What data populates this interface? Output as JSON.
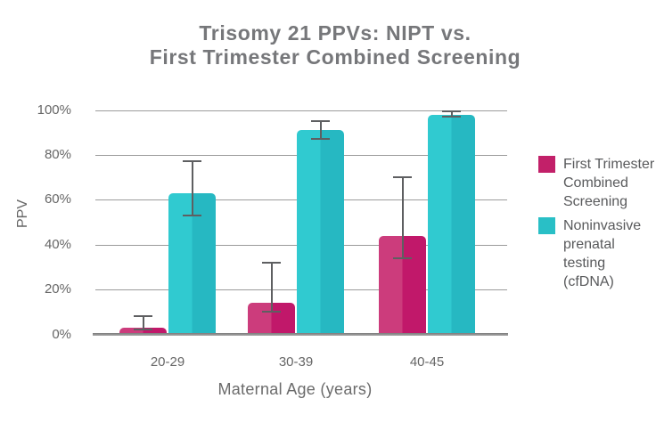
{
  "title_lines": [
    "Trisomy 21 PPVs: NIPT vs.",
    "First Trimester Combined Screening"
  ],
  "chart_data": {
    "type": "bar",
    "title": "Trisomy 21 PPVs: NIPT vs. First Trimester Combined Screening",
    "xlabel": "Maternal Age (years)",
    "ylabel": "PPV",
    "categories": [
      "20-29",
      "30-39",
      "40-45"
    ],
    "yticks": [
      0,
      20,
      40,
      60,
      80,
      100
    ],
    "ytick_suffix": "%",
    "ylim": [
      0,
      100
    ],
    "grid": true,
    "legend_position": "right",
    "error_bars": true,
    "series": [
      {
        "name": "First Trimester Combined Screening",
        "color": "#C22069",
        "bar_color_left": "#CC3C7C",
        "bar_color_right": "#C1186A",
        "values": [
          3,
          14,
          44
        ],
        "error_low": [
          2,
          10,
          34
        ],
        "error_high": [
          8,
          32,
          70
        ]
      },
      {
        "name": "Noninvasive prenatal testing (cfDNA)",
        "color": "#29BFC6",
        "bar_color_left": "#30CAD0",
        "bar_color_right": "#26B8C2",
        "values": [
          63,
          91,
          98
        ],
        "error_low": [
          53,
          87,
          97
        ],
        "error_high": [
          77,
          95,
          99.5
        ]
      }
    ],
    "colors": {
      "grid": "#9B9B9B",
      "axis": "#8A8A8A",
      "error_bar": "#5E5F61",
      "title_text": "#76777A",
      "tick_text": "#666666",
      "legend_text": "#595A5C"
    }
  }
}
